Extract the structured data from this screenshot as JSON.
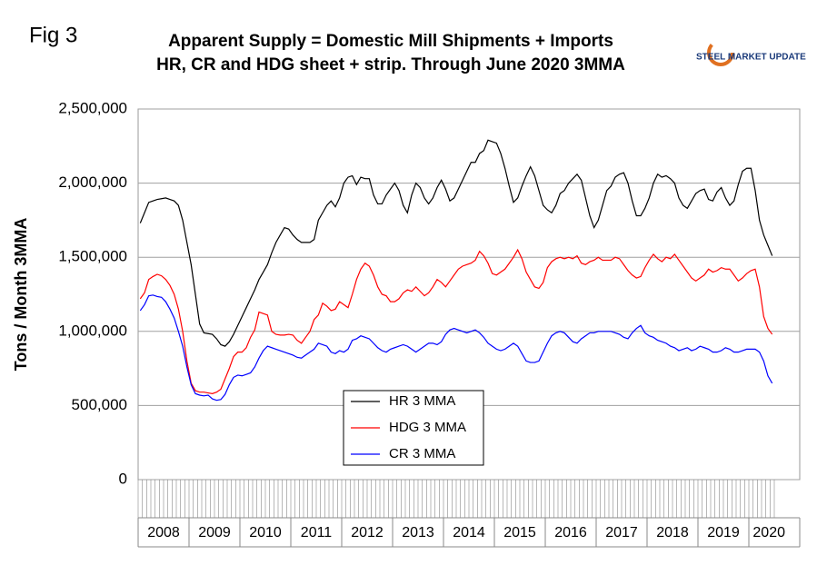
{
  "chart_data": {
    "type": "line",
    "figure_label": "Fig 3",
    "title": "Apparent Supply = Domestic Mill Shipments + Imports",
    "subtitle": "HR, CR and HDG sheet + strip. Through June 2020 3MMA",
    "logo_text": "STEEL MARKET UPDATE",
    "y_label": "Tons / Month 3MMA",
    "year_labels": [
      "2008",
      "2009",
      "2010",
      "2011",
      "2012",
      "2013",
      "2014",
      "2015",
      "2016",
      "2017",
      "2018",
      "2019",
      "2020"
    ],
    "ylim": [
      0,
      2500000
    ],
    "yticks": [
      0,
      {
        "value": 500000,
        "label": "500,000"
      },
      {
        "value": 1000000,
        "label": "1,000,000"
      },
      {
        "value": 1500000,
        "label": "1,500,000"
      },
      {
        "value": 2000000,
        "label": "2,000,000"
      },
      {
        "value": 2500000,
        "label": "2,500,000"
      }
    ],
    "grid": true,
    "series": [
      {
        "name": "HR 3 MMA",
        "color": "#000000",
        "values": [
          1730000,
          1800000,
          1870000,
          1880000,
          1890000,
          1895000,
          1900000,
          1890000,
          1880000,
          1850000,
          1750000,
          1600000,
          1450000,
          1250000,
          1050000,
          990000,
          985000,
          980000,
          950000,
          910000,
          900000,
          930000,
          980000,
          1040000,
          1100000,
          1160000,
          1220000,
          1280000,
          1350000,
          1400000,
          1450000,
          1530000,
          1600000,
          1650000,
          1700000,
          1690000,
          1650000,
          1620000,
          1600000,
          1600000,
          1600000,
          1620000,
          1750000,
          1800000,
          1850000,
          1880000,
          1840000,
          1900000,
          2000000,
          2040000,
          2050000,
          1990000,
          2040000,
          2030000,
          2030000,
          1920000,
          1860000,
          1860000,
          1920000,
          1960000,
          2000000,
          1950000,
          1850000,
          1800000,
          1920000,
          2000000,
          1970000,
          1900000,
          1860000,
          1900000,
          1970000,
          2020000,
          1960000,
          1880000,
          1900000,
          1960000,
          2020000,
          2080000,
          2140000,
          2140000,
          2200000,
          2220000,
          2290000,
          2280000,
          2270000,
          2200000,
          2100000,
          1980000,
          1870000,
          1900000,
          1980000,
          2050000,
          2110000,
          2050000,
          1950000,
          1850000,
          1820000,
          1800000,
          1850000,
          1930000,
          1950000,
          2000000,
          2030000,
          2060000,
          2020000,
          1900000,
          1780000,
          1700000,
          1750000,
          1850000,
          1950000,
          1980000,
          2040000,
          2060000,
          2070000,
          2000000,
          1880000,
          1780000,
          1780000,
          1830000,
          1900000,
          2000000,
          2060000,
          2040000,
          2050000,
          2030000,
          2000000,
          1900000,
          1850000,
          1830000,
          1880000,
          1930000,
          1950000,
          1960000,
          1890000,
          1880000,
          1940000,
          1970000,
          1900000,
          1850000,
          1880000,
          1990000,
          2080000,
          2100000,
          2100000,
          1950000,
          1750000,
          1650000,
          1580000,
          1510000
        ]
      },
      {
        "name": "HDG 3 MMA",
        "color": "#ff0000",
        "values": [
          1220000,
          1260000,
          1350000,
          1370000,
          1385000,
          1375000,
          1350000,
          1310000,
          1250000,
          1150000,
          1000000,
          800000,
          650000,
          600000,
          590000,
          590000,
          585000,
          580000,
          590000,
          610000,
          680000,
          750000,
          830000,
          860000,
          860000,
          890000,
          960000,
          1010000,
          1130000,
          1120000,
          1110000,
          1000000,
          980000,
          975000,
          975000,
          980000,
          975000,
          940000,
          920000,
          960000,
          1000000,
          1080000,
          1110000,
          1190000,
          1170000,
          1140000,
          1150000,
          1200000,
          1180000,
          1160000,
          1250000,
          1350000,
          1420000,
          1460000,
          1440000,
          1380000,
          1300000,
          1250000,
          1240000,
          1200000,
          1200000,
          1220000,
          1260000,
          1280000,
          1270000,
          1300000,
          1270000,
          1240000,
          1260000,
          1300000,
          1350000,
          1330000,
          1300000,
          1340000,
          1380000,
          1420000,
          1440000,
          1450000,
          1460000,
          1480000,
          1540000,
          1510000,
          1460000,
          1390000,
          1380000,
          1400000,
          1420000,
          1460000,
          1500000,
          1550000,
          1490000,
          1400000,
          1350000,
          1300000,
          1290000,
          1330000,
          1430000,
          1470000,
          1490000,
          1500000,
          1490000,
          1500000,
          1490000,
          1510000,
          1460000,
          1450000,
          1470000,
          1480000,
          1500000,
          1480000,
          1480000,
          1480000,
          1500000,
          1490000,
          1450000,
          1410000,
          1380000,
          1360000,
          1370000,
          1430000,
          1480000,
          1520000,
          1490000,
          1470000,
          1500000,
          1490000,
          1520000,
          1480000,
          1440000,
          1400000,
          1360000,
          1340000,
          1360000,
          1380000,
          1420000,
          1400000,
          1410000,
          1430000,
          1420000,
          1420000,
          1380000,
          1340000,
          1360000,
          1390000,
          1410000,
          1420000,
          1300000,
          1100000,
          1020000,
          980000
        ]
      },
      {
        "name": "CR 3 MMA",
        "color": "#0000ff",
        "values": [
          1140000,
          1180000,
          1240000,
          1245000,
          1235000,
          1230000,
          1200000,
          1150000,
          1090000,
          1000000,
          900000,
          760000,
          640000,
          580000,
          570000,
          565000,
          570000,
          545000,
          535000,
          540000,
          575000,
          640000,
          690000,
          705000,
          700000,
          710000,
          720000,
          760000,
          820000,
          870000,
          900000,
          890000,
          880000,
          870000,
          860000,
          850000,
          840000,
          825000,
          820000,
          840000,
          860000,
          880000,
          920000,
          910000,
          900000,
          860000,
          850000,
          870000,
          860000,
          880000,
          940000,
          950000,
          970000,
          960000,
          950000,
          920000,
          890000,
          870000,
          860000,
          880000,
          890000,
          900000,
          910000,
          900000,
          880000,
          860000,
          880000,
          900000,
          920000,
          920000,
          910000,
          930000,
          980000,
          1010000,
          1020000,
          1010000,
          1000000,
          990000,
          1000000,
          1010000,
          990000,
          960000,
          920000,
          900000,
          880000,
          870000,
          880000,
          900000,
          920000,
          900000,
          850000,
          800000,
          790000,
          790000,
          800000,
          860000,
          920000,
          970000,
          990000,
          1000000,
          990000,
          960000,
          930000,
          920000,
          950000,
          970000,
          990000,
          990000,
          1000000,
          1000000,
          1000000,
          1000000,
          990000,
          980000,
          960000,
          950000,
          990000,
          1020000,
          1040000,
          990000,
          970000,
          960000,
          940000,
          930000,
          920000,
          900000,
          890000,
          870000,
          880000,
          890000,
          870000,
          880000,
          900000,
          890000,
          880000,
          860000,
          860000,
          870000,
          890000,
          880000,
          860000,
          860000,
          870000,
          880000,
          880000,
          880000,
          860000,
          800000,
          700000,
          650000
        ]
      }
    ]
  }
}
